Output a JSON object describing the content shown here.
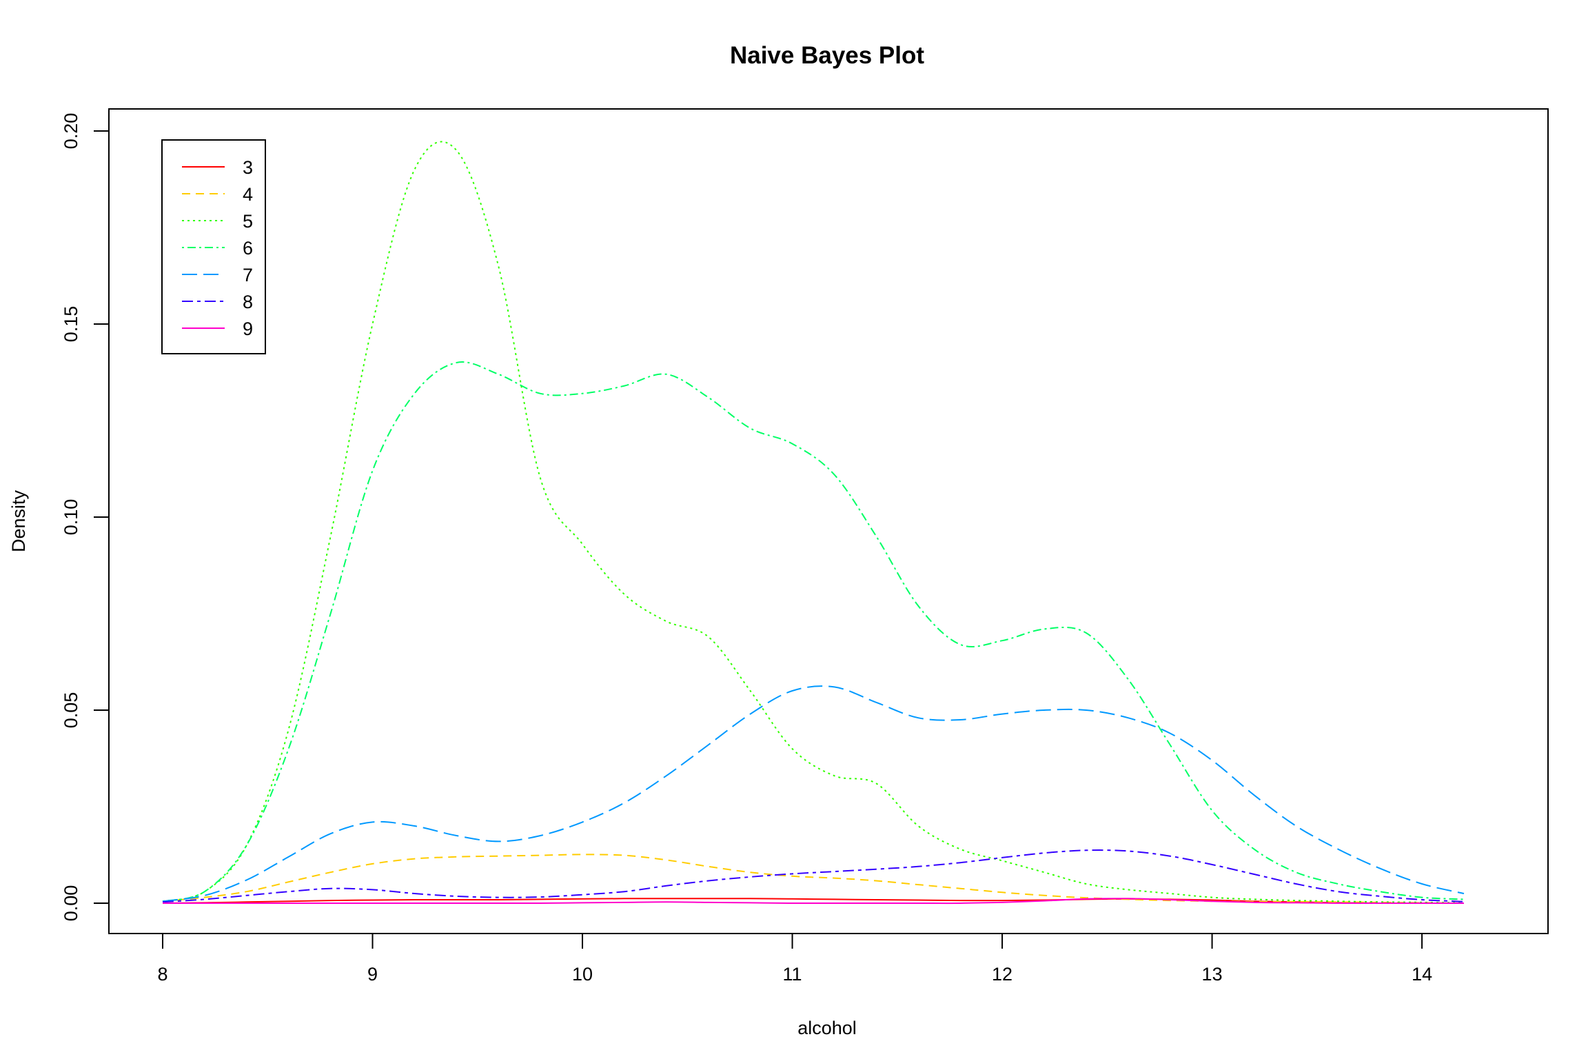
{
  "chart_data": {
    "type": "line",
    "title": "Naive Bayes Plot",
    "xlabel": "alcohol",
    "ylabel": "Density",
    "xlim": [
      8,
      14.2
    ],
    "ylim": [
      0,
      0.2
    ],
    "x_ticks": [
      "8",
      "9",
      "10",
      "11",
      "12",
      "13",
      "14"
    ],
    "y_ticks": [
      "0.00",
      "0.05",
      "0.10",
      "0.15",
      "0.20"
    ],
    "grid": false,
    "legend_position": "top-left",
    "x": [
      8.0,
      8.2,
      8.4,
      8.6,
      8.8,
      9.0,
      9.2,
      9.4,
      9.6,
      9.8,
      10.0,
      10.2,
      10.4,
      10.6,
      10.8,
      11.0,
      11.2,
      11.4,
      11.6,
      11.8,
      12.0,
      12.2,
      12.4,
      12.6,
      12.8,
      13.0,
      13.2,
      13.4,
      13.6,
      13.8,
      14.0,
      14.2
    ],
    "series": [
      {
        "name": "3",
        "color": "#FF0000",
        "dash": "solid",
        "values": [
          0.0,
          0.0001,
          0.0003,
          0.0005,
          0.0007,
          0.0008,
          0.0009,
          0.0009,
          0.0009,
          0.001,
          0.0011,
          0.0012,
          0.0012,
          0.0012,
          0.0012,
          0.0011,
          0.001,
          0.0009,
          0.0008,
          0.0007,
          0.0007,
          0.0008,
          0.001,
          0.0011,
          0.001,
          0.0008,
          0.0005,
          0.0003,
          0.0001,
          0.0,
          0.0,
          0.0
        ]
      },
      {
        "name": "4",
        "color": "#FFCC00",
        "dash": "dashed",
        "values": [
          0.0005,
          0.0015,
          0.003,
          0.0055,
          0.008,
          0.0102,
          0.0115,
          0.012,
          0.0122,
          0.0124,
          0.0126,
          0.0124,
          0.0112,
          0.0095,
          0.008,
          0.007,
          0.0065,
          0.0058,
          0.0048,
          0.0038,
          0.0028,
          0.002,
          0.0014,
          0.001,
          0.0007,
          0.0005,
          0.0004,
          0.0004,
          0.0003,
          0.0002,
          0.0001,
          0.0
        ]
      },
      {
        "name": "5",
        "color": "#33FF00",
        "dash": "dotted",
        "values": [
          0.0005,
          0.003,
          0.015,
          0.045,
          0.095,
          0.15,
          0.19,
          0.195,
          0.165,
          0.11,
          0.093,
          0.08,
          0.073,
          0.069,
          0.055,
          0.04,
          0.033,
          0.031,
          0.02,
          0.014,
          0.011,
          0.008,
          0.005,
          0.0035,
          0.0025,
          0.0015,
          0.001,
          0.0007,
          0.0005,
          0.0003,
          0.0002,
          0.0001
        ]
      },
      {
        "name": "6",
        "color": "#00FF66",
        "dash": "dotdash",
        "values": [
          0.0005,
          0.003,
          0.015,
          0.04,
          0.075,
          0.112,
          0.132,
          0.14,
          0.137,
          0.132,
          0.132,
          0.134,
          0.137,
          0.131,
          0.123,
          0.119,
          0.111,
          0.095,
          0.077,
          0.067,
          0.068,
          0.071,
          0.07,
          0.058,
          0.041,
          0.024,
          0.014,
          0.008,
          0.005,
          0.003,
          0.0015,
          0.001
        ]
      },
      {
        "name": "7",
        "color": "#0099FF",
        "dash": "longdash",
        "values": [
          0.0005,
          0.002,
          0.006,
          0.012,
          0.018,
          0.021,
          0.02,
          0.0175,
          0.016,
          0.0175,
          0.021,
          0.026,
          0.033,
          0.041,
          0.049,
          0.055,
          0.056,
          0.052,
          0.048,
          0.0475,
          0.049,
          0.05,
          0.05,
          0.048,
          0.044,
          0.037,
          0.028,
          0.02,
          0.014,
          0.009,
          0.005,
          0.0025
        ]
      },
      {
        "name": "8",
        "color": "#3300FF",
        "dash": "twodash",
        "values": [
          0.0003,
          0.001,
          0.002,
          0.003,
          0.0038,
          0.0035,
          0.0025,
          0.0018,
          0.0015,
          0.0016,
          0.0022,
          0.003,
          0.0045,
          0.0058,
          0.0068,
          0.0076,
          0.0082,
          0.0088,
          0.0095,
          0.0105,
          0.0118,
          0.013,
          0.0137,
          0.0135,
          0.0122,
          0.01,
          0.0075,
          0.005,
          0.003,
          0.0018,
          0.0009,
          0.0004
        ]
      },
      {
        "name": "9",
        "color": "#FF00CC",
        "dash": "solid",
        "values": [
          0.0,
          0.0,
          0.0,
          0.0,
          0.0,
          0.0,
          0.0,
          0.0,
          0.0,
          0.0,
          0.0001,
          0.0002,
          0.0003,
          0.0002,
          0.0001,
          0.0,
          0.0,
          0.0,
          0.0,
          0.0,
          0.0002,
          0.0006,
          0.0011,
          0.0012,
          0.0009,
          0.0005,
          0.0002,
          0.0001,
          0.0,
          0.0,
          0.0,
          0.0
        ]
      }
    ]
  }
}
